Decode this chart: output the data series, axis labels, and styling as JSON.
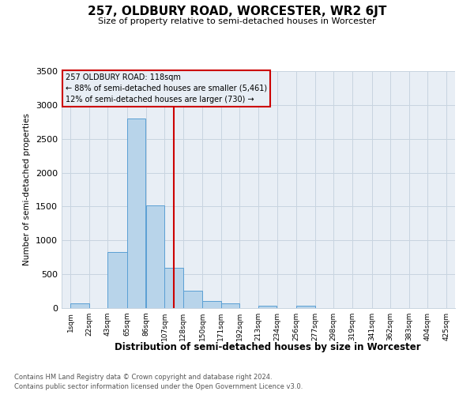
{
  "title": "257, OLDBURY ROAD, WORCESTER, WR2 6JT",
  "subtitle": "Size of property relative to semi-detached houses in Worcester",
  "xlabel": "Distribution of semi-detached houses by size in Worcester",
  "ylabel": "Number of semi-detached properties",
  "footnote1": "Contains HM Land Registry data © Crown copyright and database right 2024.",
  "footnote2": "Contains public sector information licensed under the Open Government Licence v3.0.",
  "property_size": 118,
  "property_label": "257 OLDBURY ROAD: 118sqm",
  "pct_smaller": 88,
  "pct_larger": 12,
  "count_smaller": 5461,
  "count_larger": 730,
  "bin_edges": [
    1,
    22,
    43,
    65,
    86,
    107,
    128,
    150,
    171,
    192,
    213,
    234,
    256,
    277,
    298,
    319,
    341,
    362,
    383,
    404,
    425
  ],
  "bin_labels": [
    "1sqm",
    "22sqm",
    "43sqm",
    "65sqm",
    "86sqm",
    "107sqm",
    "128sqm",
    "150sqm",
    "171sqm",
    "192sqm",
    "213sqm",
    "234sqm",
    "256sqm",
    "277sqm",
    "298sqm",
    "319sqm",
    "341sqm",
    "362sqm",
    "383sqm",
    "404sqm",
    "425sqm"
  ],
  "counts": [
    75,
    0,
    830,
    2800,
    1520,
    600,
    260,
    110,
    75,
    0,
    40,
    0,
    40,
    0,
    0,
    0,
    0,
    0,
    0,
    0
  ],
  "bar_color": "#b8d4ea",
  "bar_edge_color": "#5a9fd4",
  "vline_color": "#cc0000",
  "box_edge_color": "#cc0000",
  "ylim": [
    0,
    3500
  ],
  "yticks": [
    0,
    500,
    1000,
    1500,
    2000,
    2500,
    3000,
    3500
  ],
  "grid_color": "#c8d4e0",
  "background_color": "#ffffff",
  "plot_bg_color": "#e8eef5"
}
